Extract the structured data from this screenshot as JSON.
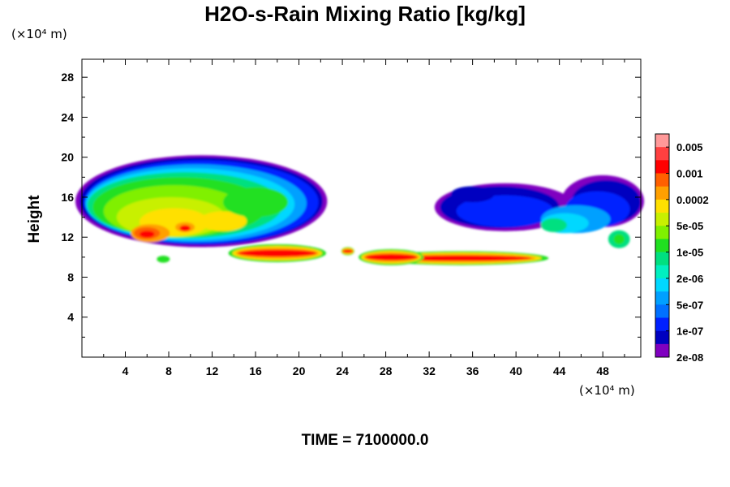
{
  "chart_data": {
    "type": "heatmap",
    "title": "H2O-s-Rain Mixing Ratio [kg/kg]",
    "xlabel": "",
    "ylabel": "Height",
    "x_unit": "(×10⁴ m)",
    "y_unit": "(×10⁴ m)",
    "xlim": [
      0,
      51.5
    ],
    "ylim": [
      0,
      29.8
    ],
    "x_ticks": [
      4,
      8,
      12,
      16,
      20,
      24,
      28,
      32,
      36,
      40,
      44,
      48
    ],
    "y_ticks": [
      4,
      8,
      12,
      16,
      20,
      24,
      28
    ],
    "x_minor_step": 2,
    "y_minor_step": 2,
    "colorbar": {
      "labels": [
        "0.005",
        "0.001",
        "0.0002",
        "5e-05",
        "1e-05",
        "2e-06",
        "5e-07",
        "1e-07",
        "2e-08"
      ],
      "colors": [
        "#ff9999",
        "#ff4040",
        "#ff0000",
        "#ff6000",
        "#ffa000",
        "#ffe000",
        "#c8f000",
        "#80f000",
        "#20e020",
        "#00e080",
        "#00f0c0",
        "#00d8ff",
        "#00a0ff",
        "#0070ff",
        "#0020ff",
        "#0000c0",
        "#8000c0"
      ]
    },
    "footer": "TIME = 7100000.0",
    "regions": [
      {
        "name": "upper-left cloud",
        "x": [
          0,
          22
        ],
        "y": [
          11,
          19.8
        ],
        "peak": "0.001"
      },
      {
        "name": "mid-level band",
        "x": [
          13,
          43
        ],
        "y": [
          9.3,
          11.6
        ],
        "peak": "0.001"
      },
      {
        "name": "upper-right cloud",
        "x": [
          31,
          51.5
        ],
        "y": [
          12,
          18.5
        ],
        "peak": "1e-05"
      }
    ]
  }
}
